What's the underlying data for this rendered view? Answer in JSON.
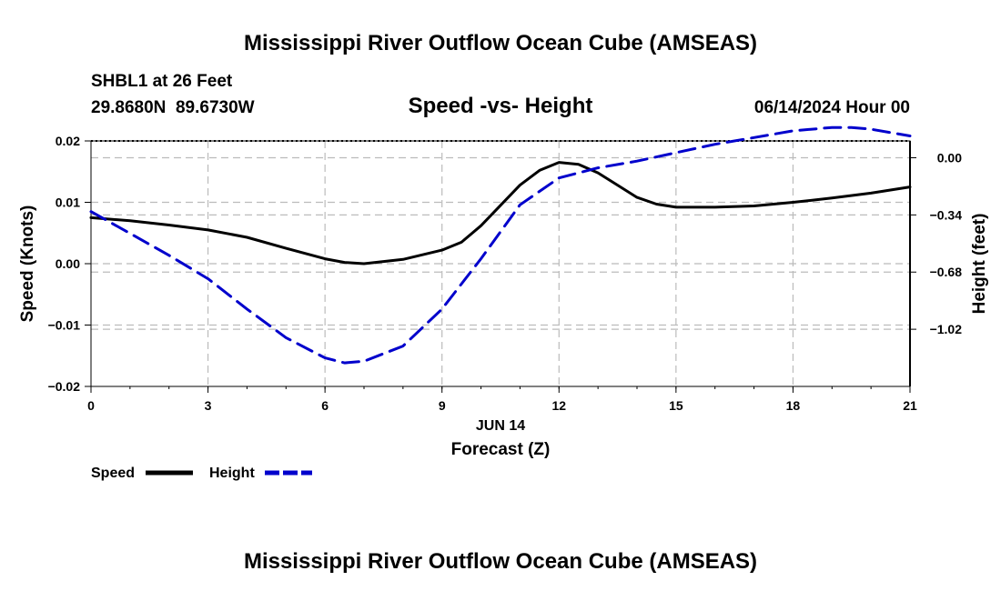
{
  "header": {
    "title_top": "Mississippi River Outflow Ocean Cube (AMSEAS)",
    "station": "SHBL1 at 26 Feet",
    "coords": "29.8680N  89.6730W",
    "subtitle": "Speed -vs- Height",
    "datetime": "06/14/2024 Hour 00"
  },
  "footer": {
    "title_bottom": "Mississippi River Outflow Ocean Cube (AMSEAS)"
  },
  "chart_data": {
    "type": "line",
    "title": "Speed -vs- Height",
    "xlabel": "Forecast (Z)",
    "xdate_label": "JUN 14",
    "ylabel_left": "Speed (Knots)",
    "ylabel_right": "Height (feet)",
    "xlim": [
      0,
      21
    ],
    "ylim_left": [
      -0.02,
      0.02
    ],
    "ylim_right": [
      -1.36,
      0.1
    ],
    "x_ticks": [
      0,
      3,
      6,
      9,
      12,
      15,
      18,
      21
    ],
    "x_tick_labels": [
      "0",
      "3",
      "6",
      "9",
      "12",
      "15",
      "18",
      "21"
    ],
    "y_left_ticks": [
      0.02,
      0.01,
      0.0,
      -0.01,
      -0.02
    ],
    "y_left_tick_labels": [
      "0.02",
      "0.01",
      "0.00",
      "−0.01",
      "−0.02"
    ],
    "y_right_ticks": [
      0.0,
      -0.34,
      -0.68,
      -1.02
    ],
    "y_right_tick_labels": [
      "0.00",
      "−0.34",
      "−0.68",
      "−1.02"
    ],
    "grid": true,
    "series": [
      {
        "name": "Speed",
        "axis": "left",
        "style": "solid",
        "color": "#000000",
        "x": [
          0,
          1,
          2,
          3,
          4,
          5,
          6,
          6.5,
          7,
          8,
          9,
          9.5,
          10,
          11,
          11.5,
          12,
          12.5,
          13,
          13.5,
          14,
          14.5,
          15,
          16,
          17,
          18,
          19,
          20,
          21
        ],
        "y": [
          0.0075,
          0.007,
          0.0063,
          0.0055,
          0.0043,
          0.0025,
          0.0008,
          0.0002,
          0.0,
          0.0007,
          0.0022,
          0.0035,
          0.0062,
          0.0128,
          0.0152,
          0.0165,
          0.0162,
          0.0148,
          0.0128,
          0.0108,
          0.0097,
          0.0092,
          0.0092,
          0.0094,
          0.01,
          0.0107,
          0.0115,
          0.0125
        ]
      },
      {
        "name": "Height",
        "axis": "right",
        "style": "dashed",
        "color": "#0000cc",
        "x": [
          0,
          1,
          2,
          3,
          4,
          5,
          6,
          6.5,
          7,
          8,
          9,
          10,
          11,
          12,
          13,
          14,
          15,
          16,
          17,
          18,
          19,
          19.5,
          20,
          21
        ],
        "y": [
          -0.32,
          -0.45,
          -0.58,
          -0.72,
          -0.9,
          -1.07,
          -1.19,
          -1.22,
          -1.21,
          -1.12,
          -0.9,
          -0.6,
          -0.28,
          -0.12,
          -0.06,
          -0.02,
          0.03,
          0.08,
          0.12,
          0.16,
          0.18,
          0.18,
          0.17,
          0.13
        ]
      }
    ],
    "legend": {
      "placement": "bottom-left",
      "entries": [
        "Speed",
        "Height"
      ]
    }
  }
}
